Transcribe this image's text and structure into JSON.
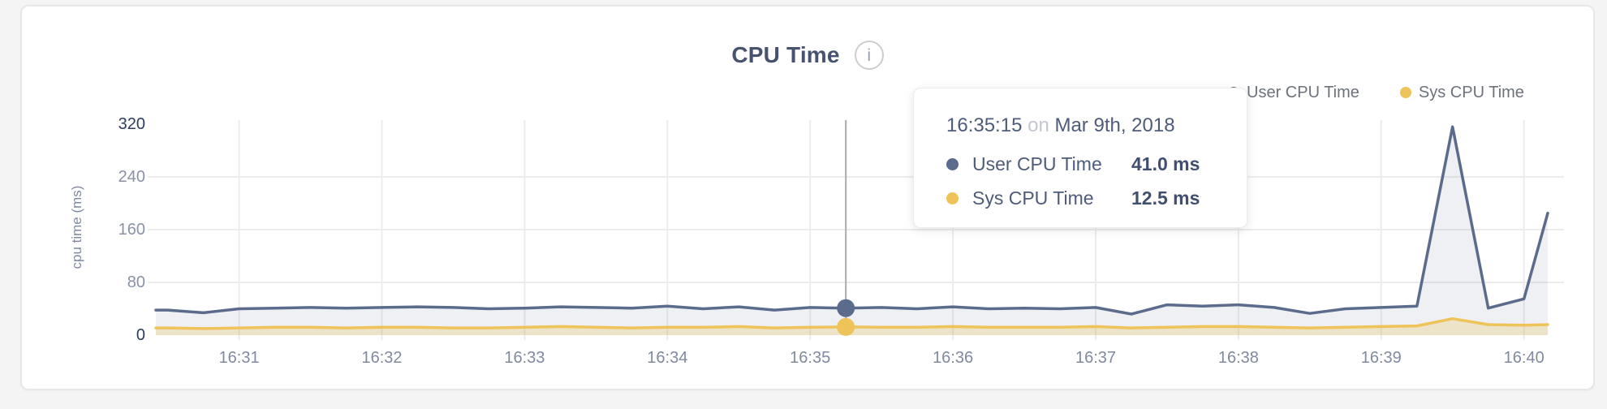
{
  "colors": {
    "user_series": "#5b6b8c",
    "sys_series": "#eec35a",
    "user_fill": "rgba(91,107,140,0.10)",
    "sys_fill": "rgba(238,195,90,0.28)",
    "gridline": "#ececec",
    "hover_line": "#ababab",
    "tick_strong": "#2c3d5e",
    "tick_muted": "#8a92a4",
    "title_text": "#47536e"
  },
  "card": {
    "title": "CPU Time",
    "info_icon_glyph": "i"
  },
  "chart": {
    "y_axis": {
      "title": "cpu time (ms)",
      "ticks": [
        0,
        80,
        160,
        240,
        320
      ],
      "strong_ticks": [
        0,
        320
      ],
      "gridlines": [
        80,
        160,
        240
      ]
    },
    "x_axis": {
      "ticks": [
        "16:31",
        "16:32",
        "16:33",
        "16:34",
        "16:35",
        "16:36",
        "16:37",
        "16:38",
        "16:39",
        "16:40"
      ]
    },
    "legend": [
      {
        "label": "User CPU Time",
        "color": "#5b6b8c"
      },
      {
        "label": "Sys CPU Time",
        "color": "#eec35a"
      }
    ]
  },
  "chart_data": {
    "type": "area",
    "title": "CPU Time",
    "xlabel": "",
    "ylabel": "cpu time (ms)",
    "ylim": [
      0,
      320
    ],
    "grid": true,
    "legend_position": "top-right",
    "x": [
      "16:30:25",
      "16:30:30",
      "16:30:45",
      "16:31:00",
      "16:31:15",
      "16:31:30",
      "16:31:45",
      "16:32:00",
      "16:32:15",
      "16:32:30",
      "16:32:45",
      "16:33:00",
      "16:33:15",
      "16:33:30",
      "16:33:45",
      "16:34:00",
      "16:34:15",
      "16:34:30",
      "16:34:45",
      "16:35:00",
      "16:35:15",
      "16:35:30",
      "16:35:45",
      "16:36:00",
      "16:36:15",
      "16:36:30",
      "16:36:45",
      "16:37:00",
      "16:37:15",
      "16:37:30",
      "16:37:45",
      "16:38:00",
      "16:38:15",
      "16:38:30",
      "16:38:45",
      "16:39:00",
      "16:39:15",
      "16:39:30",
      "16:39:45",
      "16:40:00",
      "16:40:10"
    ],
    "series": [
      {
        "name": "User CPU Time",
        "color": "#5b6b8c",
        "unit": "ms",
        "values": [
          38,
          38,
          34,
          40,
          41,
          42,
          41,
          42,
          43,
          42,
          40,
          41,
          43,
          42,
          41,
          44,
          40,
          43,
          38,
          42,
          41,
          42,
          40,
          43,
          40,
          41,
          40,
          42,
          32,
          46,
          44,
          46,
          42,
          33,
          40,
          42,
          44,
          316,
          41,
          55,
          185
        ]
      },
      {
        "name": "Sys CPU Time",
        "color": "#eec35a",
        "unit": "ms",
        "values": [
          11,
          11,
          10,
          11,
          12,
          12,
          11,
          12,
          12,
          11,
          11,
          12,
          13,
          12,
          11,
          12,
          12,
          13,
          11,
          12,
          12.5,
          12,
          12,
          13,
          12,
          12,
          12,
          13,
          11,
          12,
          13,
          13,
          12,
          11,
          12,
          13,
          14,
          25,
          16,
          15,
          16
        ]
      }
    ]
  },
  "tooltip": {
    "time": "16:35:15",
    "connector": "on",
    "date": "Mar 9th, 2018",
    "rows": [
      {
        "label": "User CPU Time",
        "value": "41.0 ms",
        "color": "#5b6b8c"
      },
      {
        "label": "Sys CPU Time",
        "value": "12.5 ms",
        "color": "#eec35a"
      }
    ]
  }
}
